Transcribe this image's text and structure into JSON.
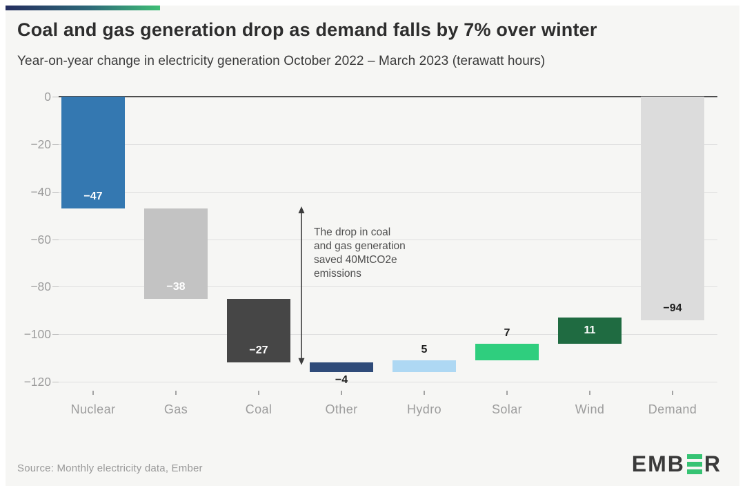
{
  "header": {
    "title": "Coal and gas generation drop as demand falls by 7% over winter",
    "subtitle": "Year-on-year change in electricity generation October 2022 – March 2023 (terawatt hours)"
  },
  "chart_data": {
    "type": "bar",
    "subtype": "waterfall",
    "title": "Coal and gas generation drop as demand falls by 7% over winter",
    "unit": "terawatt hours",
    "ylim": [
      -120,
      0
    ],
    "grid": true,
    "yticks": [
      0,
      -20,
      -40,
      -60,
      -80,
      -100,
      -120
    ],
    "ytick_labels": [
      "0",
      "−20",
      "−40",
      "−60",
      "−80",
      "−100",
      "−120"
    ],
    "categories": [
      "Nuclear",
      "Gas",
      "Coal",
      "Other",
      "Hydro",
      "Solar",
      "Wind",
      "Demand"
    ],
    "values": [
      -47,
      -38,
      -27,
      -4,
      5,
      7,
      11,
      -94
    ],
    "bars": [
      {
        "category": "Nuclear",
        "value": -47,
        "start": 0,
        "color": "#3478b1",
        "label": "−47",
        "label_color": "#ffffff",
        "label_pos": "inside-bottom"
      },
      {
        "category": "Gas",
        "value": -38,
        "start": -47,
        "color": "#c3c3c3",
        "label": "−38",
        "label_color": "#ffffff",
        "label_pos": "inside-bottom"
      },
      {
        "category": "Coal",
        "value": -27,
        "start": -85,
        "color": "#464646",
        "label": "−27",
        "label_color": "#ffffff",
        "label_pos": "inside-bottom"
      },
      {
        "category": "Other",
        "value": -4,
        "start": -112,
        "color": "#2f4b79",
        "label": "−4",
        "label_color": "#1f1f1f",
        "label_pos": "below"
      },
      {
        "category": "Hydro",
        "value": 5,
        "start": -116,
        "color": "#aed8f3",
        "label": "5",
        "label_color": "#1f1f1f",
        "label_pos": "above"
      },
      {
        "category": "Solar",
        "value": 7,
        "start": -111,
        "color": "#2fce7e",
        "label": "7",
        "label_color": "#1f1f1f",
        "label_pos": "above"
      },
      {
        "category": "Wind",
        "value": 11,
        "start": -104,
        "color": "#1f6b41",
        "label": "11",
        "label_color": "#ffffff",
        "label_pos": "inside-center"
      },
      {
        "category": "Demand",
        "value": -94,
        "start": 0,
        "color": "#dcdcdc",
        "label": "−94",
        "label_color": "#1f1f1f",
        "label_pos": "inside-bottom"
      }
    ],
    "annotation": {
      "lines": [
        "The drop in coal",
        "and gas generation",
        "saved 40MtCO2e",
        "emissions"
      ],
      "arrow_from_value": -47,
      "arrow_to_value": -112
    }
  },
  "footer": {
    "source": "Source: Monthly electricity data, Ember",
    "logo_left": "EMB",
    "logo_right": "R"
  }
}
